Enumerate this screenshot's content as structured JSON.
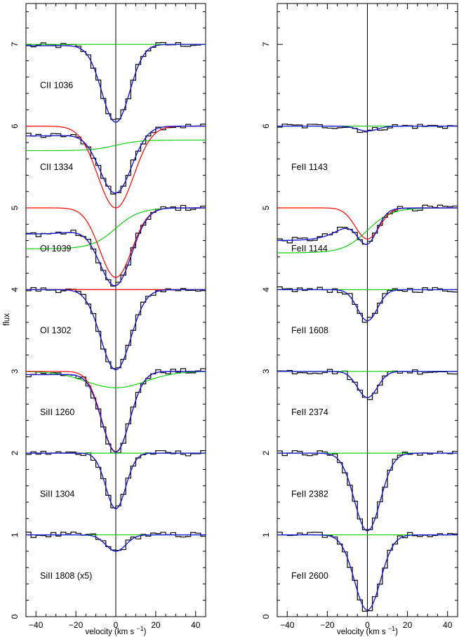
{
  "colors": {
    "data": "#000000",
    "total_fit": "#1a1acc",
    "component_red": "#ff0000",
    "component_green": "#00cc00"
  },
  "chart_data": [
    {
      "type": "line",
      "xlabel_text": "velocity",
      "xlabel_unit": "(km s",
      "xlabel_exp": "−1",
      "xlabel_close": ")",
      "ylabel": "flux",
      "xlim": [
        -45,
        45
      ],
      "ylim": [
        0,
        7.5
      ],
      "xticks": [
        "−40",
        "−20",
        "0",
        "20",
        "40"
      ],
      "xtick_values": [
        -40,
        -20,
        0,
        20,
        40
      ],
      "yticks": [
        "0",
        "1",
        "2",
        "3",
        "4",
        "5",
        "6",
        "7"
      ],
      "yticks_rotated": true,
      "vertical_line_x": 0,
      "panels": [
        {
          "label": "CII 1036",
          "offset": 6,
          "depth": 0.95,
          "sigma": 7,
          "blue_pre": 0.02,
          "red": false,
          "green": {
            "type": "flat"
          }
        },
        {
          "label": "CII 1334",
          "offset": 5,
          "depth": 0.8,
          "sigma": 8,
          "blue_pre": 0.15,
          "red": {
            "depth": 1.0,
            "sigma": 9
          },
          "green": {
            "type": "rise",
            "from": 0.7,
            "to": 0.83
          }
        },
        {
          "label": "OI 1039",
          "offset": 4,
          "depth": 0.9,
          "sigma": 8,
          "blue_pre": 0.4,
          "red": {
            "depth": 0.85,
            "sigma": 8
          },
          "green": {
            "type": "rise",
            "from": 0.5,
            "to": 1.0
          }
        },
        {
          "label": "OI 1302",
          "offset": 3,
          "depth": 0.98,
          "sigma": 7.5,
          "blue_pre": 0.0,
          "red": {
            "depth": 0.0,
            "sigma": 1
          },
          "green": {
            "type": "flat"
          }
        },
        {
          "label": "SiII 1260",
          "offset": 2,
          "depth": 0.98,
          "sigma": 7,
          "blue_pre": 0.05,
          "red": {
            "depth": 0.98,
            "sigma": 7
          },
          "green": {
            "type": "dip",
            "depth": 0.2,
            "sigma": 15
          }
        },
        {
          "label": "SiII 1304",
          "offset": 1,
          "depth": 0.68,
          "sigma": 5,
          "blue_pre": 0.0,
          "red": false,
          "green": {
            "type": "flat"
          }
        },
        {
          "label": "SiII 1808 (x5)",
          "offset": 0,
          "depth": 0.2,
          "sigma": 5,
          "blue_pre": 0.0,
          "red": false,
          "green": {
            "type": "flat"
          }
        }
      ]
    },
    {
      "type": "line",
      "xlabel_text": "velocity",
      "xlabel_unit": "(km s",
      "xlabel_exp": "−1",
      "xlabel_close": ")",
      "ylabel": "",
      "xlim": [
        -45,
        45
      ],
      "ylim": [
        0,
        7.5
      ],
      "xticks": [
        "−40",
        "−20",
        "0",
        "20",
        "40"
      ],
      "xtick_values": [
        -40,
        -20,
        0,
        20,
        40
      ],
      "yticks": [
        "0",
        "1",
        "2",
        "3",
        "4",
        "5",
        "6",
        "7"
      ],
      "yticks_rotated": true,
      "vertical_line_x": 0,
      "panels": [
        {
          "label": "FeII 1143",
          "offset": 5,
          "depth": 0.06,
          "sigma": 5,
          "blue_pre": 0.0,
          "red": false,
          "green": {
            "type": "flat"
          }
        },
        {
          "label": "FeII 1144",
          "offset": 4,
          "depth": 0.38,
          "sigma": 5,
          "blue_pre": 0.5,
          "red": {
            "depth": 0.38,
            "sigma": 6
          },
          "green": {
            "type": "rise",
            "from": 0.45,
            "to": 1.0
          }
        },
        {
          "label": "FeII 1608",
          "offset": 3,
          "depth": 0.38,
          "sigma": 5,
          "blue_pre": 0.0,
          "red": false,
          "green": {
            "type": "flat"
          }
        },
        {
          "label": "FeII 2374",
          "offset": 2,
          "depth": 0.32,
          "sigma": 5,
          "blue_pre": 0.0,
          "red": false,
          "green": {
            "type": "flat"
          }
        },
        {
          "label": "FeII 2382",
          "offset": 1,
          "depth": 0.95,
          "sigma": 6.5,
          "blue_pre": 0.0,
          "red": false,
          "green": {
            "type": "flat"
          }
        },
        {
          "label": "FeII 2600",
          "offset": 0,
          "depth": 0.92,
          "sigma": 6.5,
          "blue_pre": 0.0,
          "red": false,
          "green": {
            "type": "flat"
          }
        }
      ]
    }
  ]
}
